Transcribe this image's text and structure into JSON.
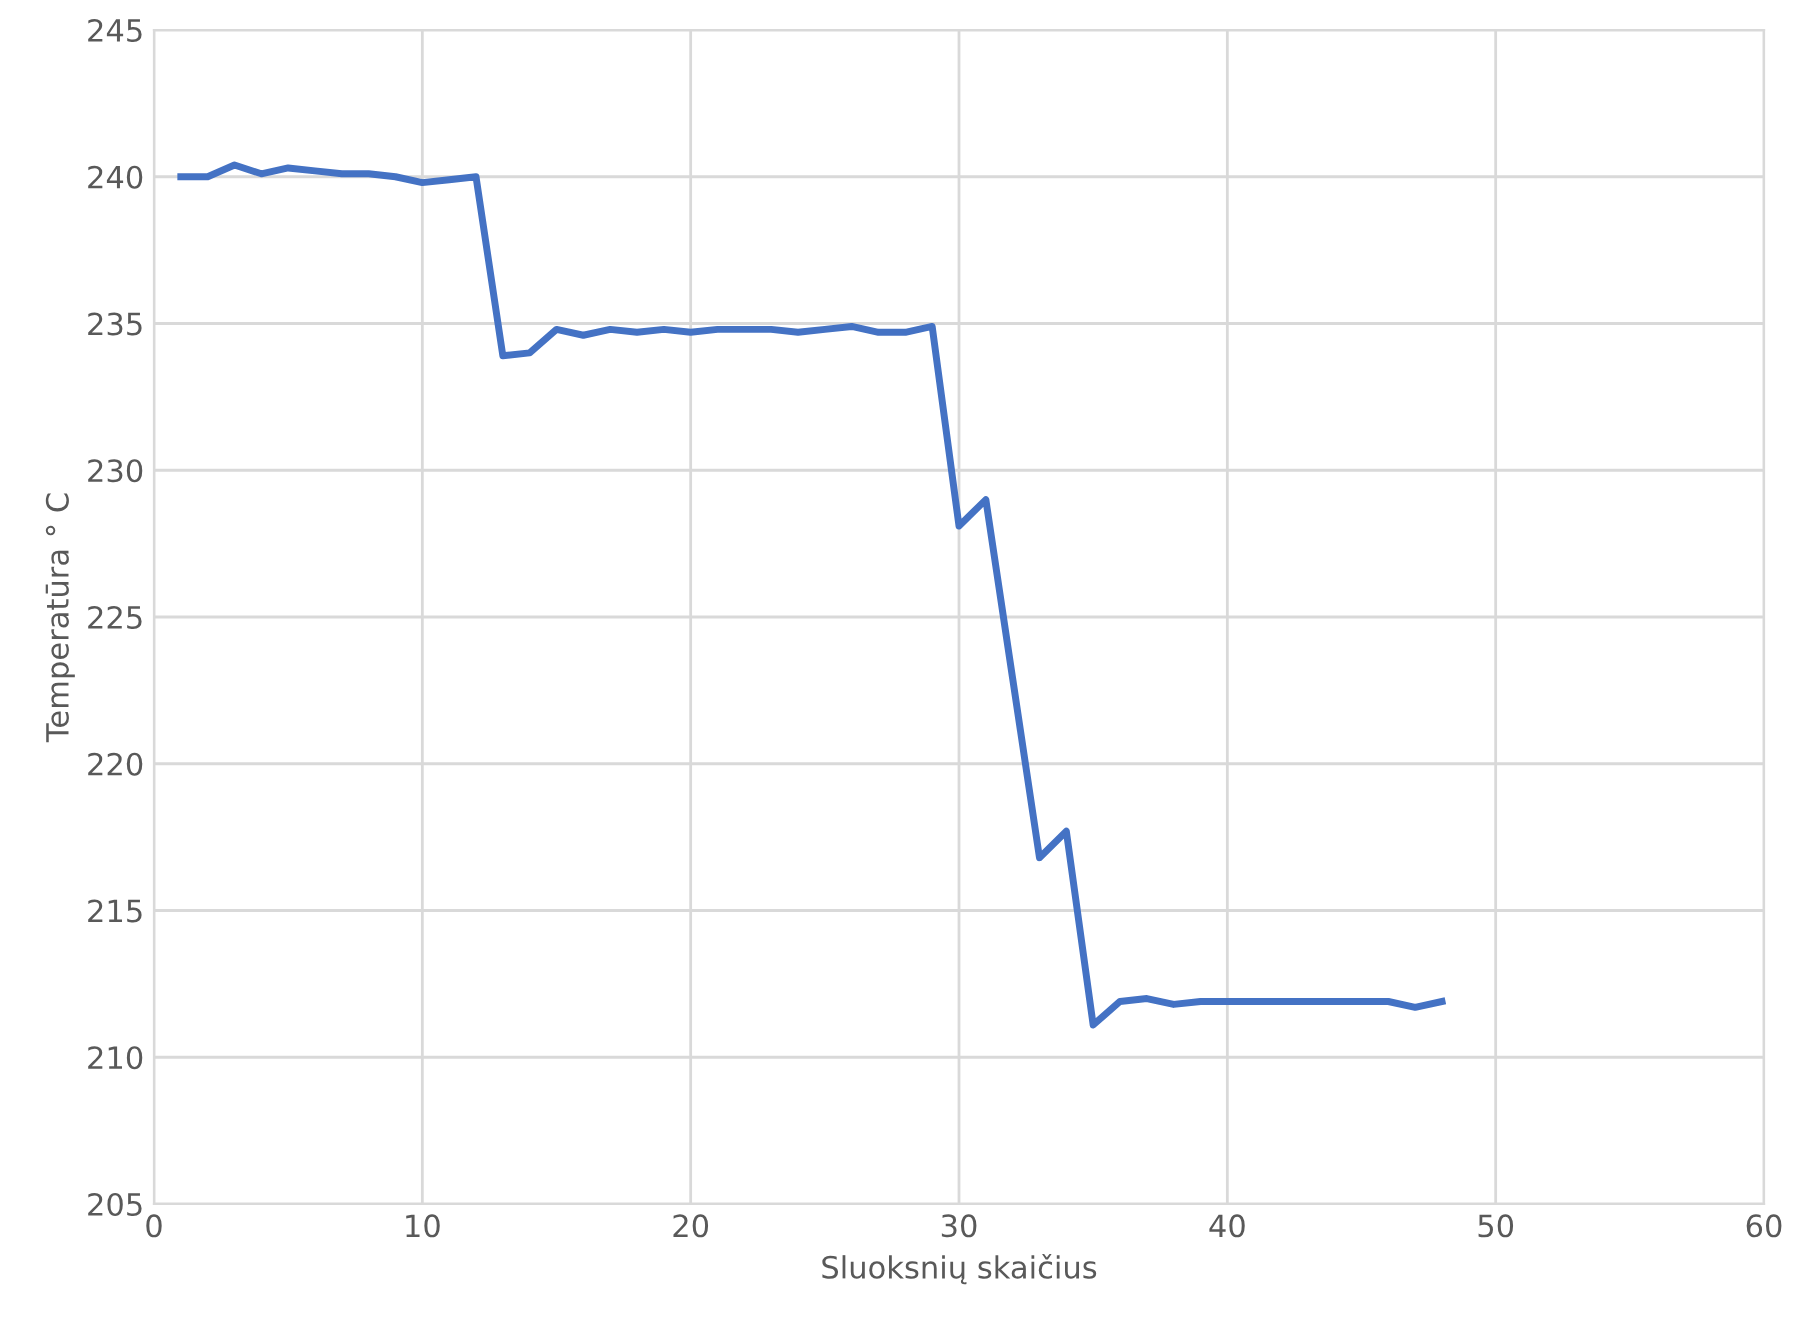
{
  "chart_data": {
    "type": "line",
    "xlabel": "Sluoksnių skaičius",
    "ylabel": "Temperatūra ° C",
    "x": [
      1,
      2,
      3,
      4,
      5,
      6,
      7,
      8,
      9,
      10,
      11,
      12,
      13,
      14,
      15,
      16,
      17,
      18,
      19,
      20,
      21,
      22,
      23,
      24,
      25,
      26,
      27,
      28,
      29,
      30,
      31,
      32,
      33,
      34,
      35,
      36,
      37,
      38,
      39,
      40,
      41,
      42,
      43,
      44,
      45,
      46,
      47,
      48
    ],
    "series": [
      {
        "color": "#4472c4",
        "values": [
          240,
          240,
          240.4,
          240.1,
          240.3,
          240.2,
          240.1,
          240.1,
          240,
          239.8,
          239.9,
          240,
          233.9,
          234,
          234.8,
          234.6,
          234.8,
          234.7,
          234.8,
          234.7,
          234.8,
          234.8,
          234.8,
          234.7,
          234.8,
          234.9,
          234.7,
          234.7,
          234.9,
          228.1,
          229,
          222.9,
          216.8,
          217.7,
          211.1,
          211.9,
          212,
          211.8,
          211.9,
          211.9,
          211.9,
          211.9,
          211.9,
          211.9,
          211.9,
          211.9,
          211.7,
          211.9
        ]
      }
    ],
    "xlim": [
      0,
      60
    ],
    "xticks": [
      0,
      10,
      20,
      30,
      40,
      50,
      60
    ],
    "ylim": [
      205,
      245
    ],
    "yticks": [
      205,
      210,
      215,
      220,
      225,
      230,
      235,
      240,
      245
    ],
    "grid": true,
    "marker": "none",
    "line_style": "solid",
    "legend": false
  }
}
